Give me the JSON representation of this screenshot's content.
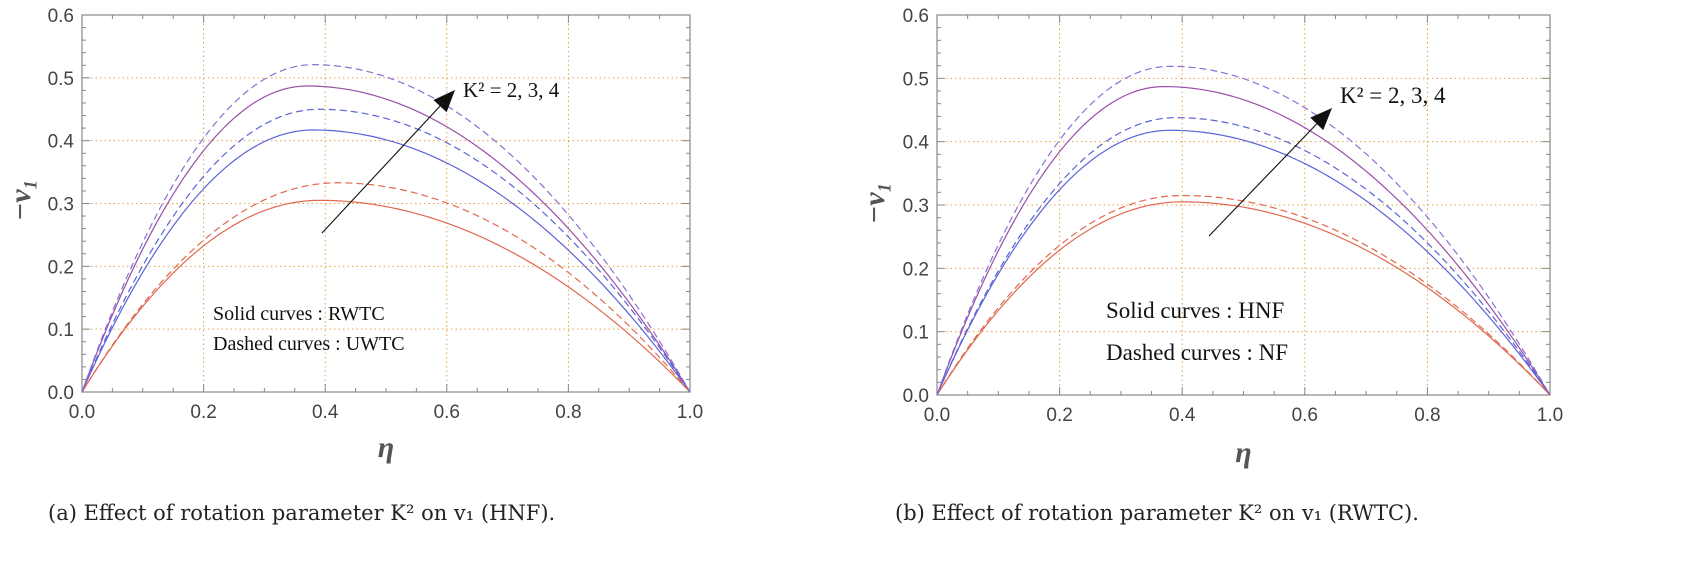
{
  "chart_data": [
    {
      "type": "line",
      "id": "a",
      "xlabel": "η",
      "ylabel": "−v₁",
      "xlim": [
        0,
        1
      ],
      "ylim": [
        0,
        0.6
      ],
      "xticks": [
        "0.0",
        "0.2",
        "0.4",
        "0.6",
        "0.8",
        "1.0"
      ],
      "yticks": [
        "0.0",
        "0.1",
        "0.2",
        "0.3",
        "0.4",
        "0.5",
        "0.6"
      ],
      "grid": true,
      "annotation": "K² = 2, 3, 4",
      "legend_lines": [
        "Solid curves : RWTC",
        "Dashed curves : UWTC"
      ],
      "caption": "(a) Effect of rotation parameter K² on v₁ (HNF).",
      "series": [
        {
          "name": "K²=2 RWTC",
          "style": "solid",
          "color": "#e0694f",
          "peak": 0.305,
          "peak_x": 0.39
        },
        {
          "name": "K²=3 RWTC",
          "style": "solid",
          "color": "#5a64d6",
          "peak": 0.417,
          "peak_x": 0.38
        },
        {
          "name": "K²=4 RWTC",
          "style": "solid",
          "color": "#9a4fa8",
          "peak": 0.487,
          "peak_x": 0.37
        },
        {
          "name": "K²=2 UWTC",
          "style": "dashed",
          "color": "#e0694f",
          "peak": 0.333,
          "peak_x": 0.42
        },
        {
          "name": "K²=3 UWTC",
          "style": "dashed",
          "color": "#5a64d6",
          "peak": 0.45,
          "peak_x": 0.39
        },
        {
          "name": "K²=4 UWTC",
          "style": "dashed",
          "color": "#8a70d6",
          "peak": 0.521,
          "peak_x": 0.38
        }
      ]
    },
    {
      "type": "line",
      "id": "b",
      "xlabel": "η",
      "ylabel": "−v₁",
      "xlim": [
        0,
        1
      ],
      "ylim": [
        0,
        0.6
      ],
      "xticks": [
        "0.0",
        "0.2",
        "0.4",
        "0.6",
        "0.8",
        "1.0"
      ],
      "yticks": [
        "0.0",
        "0.1",
        "0.2",
        "0.3",
        "0.4",
        "0.5",
        "0.6"
      ],
      "grid": true,
      "annotation": "K² = 2, 3, 4",
      "legend_lines": [
        "Solid curves : HNF",
        "Dashed curves : NF"
      ],
      "caption": "(b) Effect of rotation parameter K² on v₁ (RWTC).",
      "series": [
        {
          "name": "K²=2 HNF",
          "style": "solid",
          "color": "#e0694f",
          "peak": 0.305,
          "peak_x": 0.4
        },
        {
          "name": "K²=3 HNF",
          "style": "solid",
          "color": "#5a64d6",
          "peak": 0.418,
          "peak_x": 0.38
        },
        {
          "name": "K²=4 HNF",
          "style": "solid",
          "color": "#9a4fa8",
          "peak": 0.487,
          "peak_x": 0.37
        },
        {
          "name": "K²=2 NF",
          "style": "dashed",
          "color": "#e0694f",
          "peak": 0.315,
          "peak_x": 0.4
        },
        {
          "name": "K²=3 NF",
          "style": "dashed",
          "color": "#5a64d6",
          "peak": 0.438,
          "peak_x": 0.39
        },
        {
          "name": "K²=4 NF",
          "style": "dashed",
          "color": "#8a70d6",
          "peak": 0.519,
          "peak_x": 0.38
        }
      ]
    }
  ]
}
